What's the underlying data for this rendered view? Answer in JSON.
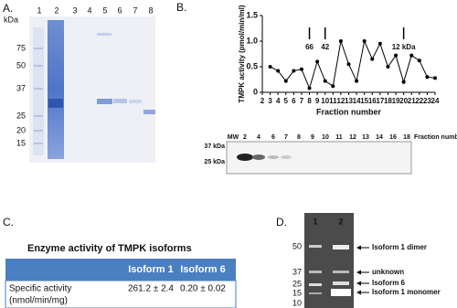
{
  "panel_a": {
    "label": "A.",
    "unit": "kDa",
    "lanes": [
      "1",
      "2",
      "3",
      "4",
      "5",
      "6",
      "7",
      "8"
    ],
    "markers": [
      "75",
      "50",
      "37",
      "25",
      "20",
      "15"
    ]
  },
  "chart_data": {
    "type": "line",
    "panel_label": "B.",
    "y_label": "TMPK activity (pmol/min/ml)",
    "x_label": "Fraction number",
    "x": [
      3,
      4,
      5,
      6,
      7,
      8,
      9,
      10,
      11,
      12,
      13,
      14,
      15,
      16,
      17,
      18,
      19,
      20,
      21,
      22,
      23,
      24
    ],
    "series": [
      {
        "color": "#000000",
        "values": [
          0.5,
          0.42,
          0.22,
          0.42,
          0.45,
          0.08,
          0.6,
          0.22,
          0.12,
          1,
          0.55,
          0.22,
          1,
          0.65,
          0.95,
          0.5,
          0.72,
          0.2,
          0.72,
          0.62,
          0.3,
          0.28
        ]
      }
    ],
    "xlim": [
      2,
      24
    ],
    "xticks": [
      2,
      3,
      4,
      5,
      6,
      7,
      8,
      9,
      10,
      11,
      12,
      13,
      14,
      15,
      16,
      17,
      18,
      19,
      20,
      21,
      22,
      23,
      24
    ],
    "ylim": [
      0,
      1.5
    ],
    "yticks": [
      0,
      0.5,
      {
        "value": 1,
        "label": "1.0"
      },
      1.5
    ],
    "annotations": [
      {
        "x": 8,
        "label": "66"
      },
      {
        "x": 10,
        "label": "42"
      },
      {
        "x": 20,
        "label": "12 kDa"
      }
    ]
  },
  "gel_b": {
    "mw_label": "MW",
    "lanes": [
      "2",
      "4",
      "6",
      "7",
      "8",
      "9",
      "10",
      "11",
      "12",
      "13",
      "14",
      "16",
      "18"
    ],
    "axis_label": "Fraction number",
    "markers": [
      "37 kDa",
      "25 kDa"
    ]
  },
  "panel_c": {
    "label": "C.",
    "title": "Enzyme activity of  TMPK isoforms",
    "columns": [
      "Isoform 1",
      "Isoform 6"
    ],
    "rows": [
      {
        "label": [
          "Specific activity",
          "(nmol/min/mg)"
        ],
        "cells": [
          "261.2 ± 2.4",
          "0.20 ± 0.02"
        ]
      }
    ]
  },
  "panel_d": {
    "label": "D.",
    "lanes": [
      "1",
      "2"
    ],
    "markers": [
      "50",
      "37",
      "25",
      "15",
      "10"
    ],
    "bands": [
      "Isoform 1 dimer",
      "unknown",
      "Isoform 6",
      "Isoform 1 monomer"
    ]
  }
}
